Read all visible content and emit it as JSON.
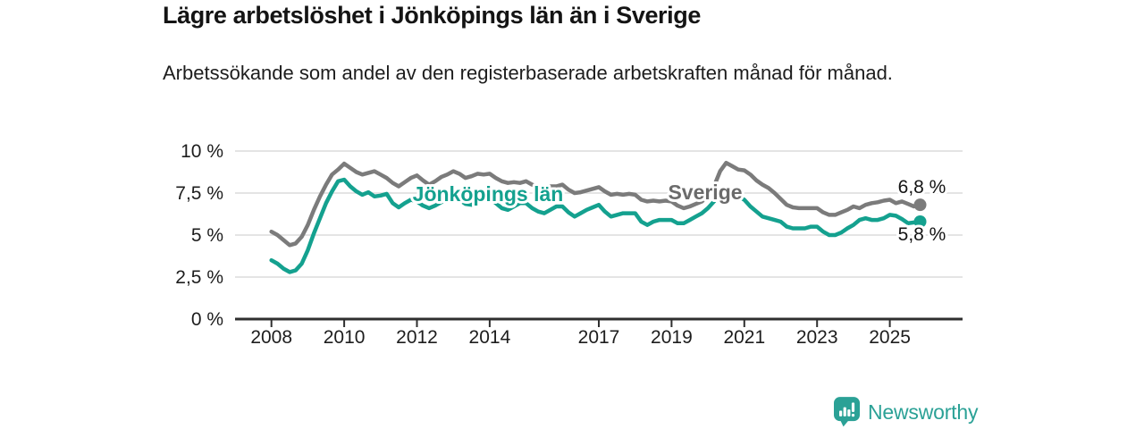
{
  "chart_data": {
    "type": "line",
    "title": "Lägre arbetslöshet i Jönköpings län än i Sverige",
    "subtitle": "Arbetssökande som andel av den registerbaserade arbetskraften månad för månad.",
    "grid": true,
    "legend": "inline-labels",
    "colors": {
      "axis": "#2f2f2f",
      "grid": "#dcdcdc",
      "text": "#1d1d1d"
    },
    "x_axis": {
      "range": [
        2007,
        2027
      ],
      "ticks": [
        "2008",
        "2010",
        "2012",
        "2014",
        "2017",
        "2019",
        "2021",
        "2023",
        "2025"
      ]
    },
    "y_axis": {
      "unit": "%",
      "range": [
        0,
        10
      ],
      "ticks": [
        {
          "value": 0,
          "label": "0 %"
        },
        {
          "value": 2.5,
          "label": "2,5 %"
        },
        {
          "value": 5,
          "label": "5 %"
        },
        {
          "value": 7.5,
          "label": "7,5 %"
        },
        {
          "value": 10,
          "label": "10 %"
        }
      ]
    },
    "series": [
      {
        "id": "sverige",
        "name": "Sverige",
        "color": "#7b7b7b",
        "label_color": "#6b6b6b",
        "end_label": "6,8 %",
        "end_value": 6.8,
        "start": 2008.0,
        "step_months": 2,
        "values": [
          5.2,
          5.0,
          4.7,
          4.4,
          4.5,
          4.9,
          5.6,
          6.5,
          7.3,
          8.0,
          8.6,
          8.9,
          9.25,
          9.0,
          8.75,
          8.6,
          8.7,
          8.8,
          8.6,
          8.4,
          8.1,
          7.9,
          8.15,
          8.4,
          8.55,
          8.25,
          8.0,
          8.2,
          8.45,
          8.6,
          8.8,
          8.65,
          8.4,
          8.5,
          8.65,
          8.6,
          8.65,
          8.4,
          8.2,
          8.1,
          8.15,
          8.1,
          8.2,
          8.0,
          7.85,
          7.8,
          7.9,
          7.9,
          8.0,
          7.7,
          7.5,
          7.55,
          7.65,
          7.75,
          7.85,
          7.6,
          7.4,
          7.45,
          7.4,
          7.45,
          7.4,
          7.1,
          7.0,
          7.05,
          7.0,
          7.05,
          7.0,
          6.75,
          6.6,
          6.7,
          6.85,
          7.0,
          7.3,
          7.9,
          8.8,
          9.3,
          9.1,
          8.9,
          8.85,
          8.6,
          8.25,
          8.0,
          7.8,
          7.5,
          7.15,
          6.8,
          6.65,
          6.6,
          6.6,
          6.6,
          6.6,
          6.35,
          6.2,
          6.2,
          6.35,
          6.5,
          6.7,
          6.6,
          6.8,
          6.9,
          6.95,
          7.05,
          7.1,
          6.9,
          7.0,
          6.85,
          6.7,
          6.8
        ]
      },
      {
        "id": "jonkoping",
        "name": "Jönköpings län",
        "color": "#14a18f",
        "label_color": "#14a18f",
        "end_label": "5,8 %",
        "end_value": 5.8,
        "start": 2008.0,
        "step_months": 2,
        "values": [
          3.5,
          3.3,
          3.0,
          2.8,
          2.9,
          3.3,
          4.1,
          5.1,
          6.0,
          6.9,
          7.6,
          8.2,
          8.3,
          7.9,
          7.6,
          7.4,
          7.55,
          7.3,
          7.35,
          7.45,
          6.9,
          6.65,
          6.9,
          7.1,
          7.0,
          6.75,
          6.6,
          6.75,
          6.95,
          7.15,
          7.35,
          7.1,
          6.85,
          6.8,
          7.0,
          7.15,
          7.2,
          6.9,
          6.6,
          6.5,
          6.7,
          6.9,
          6.9,
          6.6,
          6.4,
          6.3,
          6.5,
          6.7,
          6.7,
          6.35,
          6.1,
          6.3,
          6.5,
          6.65,
          6.8,
          6.4,
          6.1,
          6.2,
          6.3,
          6.3,
          6.3,
          5.8,
          5.6,
          5.8,
          5.9,
          5.9,
          5.9,
          5.7,
          5.7,
          5.9,
          6.1,
          6.3,
          6.6,
          7.0,
          7.45,
          7.6,
          7.5,
          7.3,
          7.1,
          6.7,
          6.4,
          6.1,
          6.0,
          5.9,
          5.8,
          5.5,
          5.4,
          5.4,
          5.4,
          5.5,
          5.5,
          5.2,
          5.0,
          5.0,
          5.15,
          5.4,
          5.6,
          5.9,
          6.0,
          5.9,
          5.9,
          6.0,
          6.2,
          6.15,
          5.95,
          5.7,
          5.75,
          5.8
        ]
      }
    ]
  },
  "branding": {
    "logo_text": "Newsworthy",
    "logo_icon": "newsworthy-bubble-barchart-icon",
    "color": "#2ba196"
  }
}
